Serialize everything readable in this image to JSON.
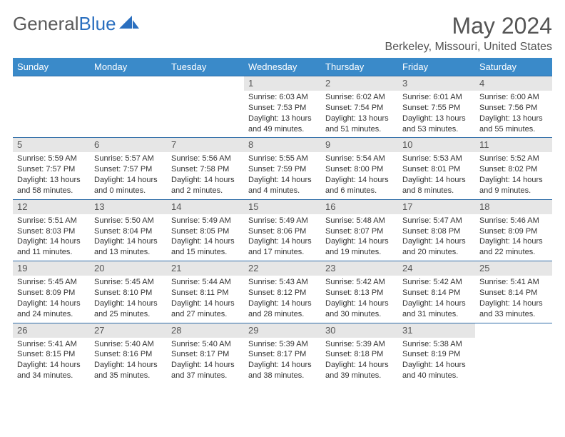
{
  "brand": {
    "part1": "General",
    "part2": "Blue",
    "color_text": "#5a5a5a",
    "color_accent": "#2a6fbf"
  },
  "title": "May 2024",
  "location": "Berkeley, Missouri, United States",
  "colors": {
    "header_bg": "#3a8ac9",
    "header_fg": "#ffffff",
    "row_border": "#2f6da8",
    "daynum_bg": "#e6e6e6",
    "body_text": "#333333",
    "page_bg": "#ffffff"
  },
  "fonts": {
    "title_size": 32,
    "location_size": 16,
    "th_size": 13,
    "daynum_size": 13,
    "body_size": 11
  },
  "weekdays": [
    "Sunday",
    "Monday",
    "Tuesday",
    "Wednesday",
    "Thursday",
    "Friday",
    "Saturday"
  ],
  "firstDayOffset": 3,
  "days": [
    {
      "n": 1,
      "sunrise": "6:03 AM",
      "sunset": "7:53 PM",
      "daylight": "13 hours and 49 minutes."
    },
    {
      "n": 2,
      "sunrise": "6:02 AM",
      "sunset": "7:54 PM",
      "daylight": "13 hours and 51 minutes."
    },
    {
      "n": 3,
      "sunrise": "6:01 AM",
      "sunset": "7:55 PM",
      "daylight": "13 hours and 53 minutes."
    },
    {
      "n": 4,
      "sunrise": "6:00 AM",
      "sunset": "7:56 PM",
      "daylight": "13 hours and 55 minutes."
    },
    {
      "n": 5,
      "sunrise": "5:59 AM",
      "sunset": "7:57 PM",
      "daylight": "13 hours and 58 minutes."
    },
    {
      "n": 6,
      "sunrise": "5:57 AM",
      "sunset": "7:57 PM",
      "daylight": "14 hours and 0 minutes."
    },
    {
      "n": 7,
      "sunrise": "5:56 AM",
      "sunset": "7:58 PM",
      "daylight": "14 hours and 2 minutes."
    },
    {
      "n": 8,
      "sunrise": "5:55 AM",
      "sunset": "7:59 PM",
      "daylight": "14 hours and 4 minutes."
    },
    {
      "n": 9,
      "sunrise": "5:54 AM",
      "sunset": "8:00 PM",
      "daylight": "14 hours and 6 minutes."
    },
    {
      "n": 10,
      "sunrise": "5:53 AM",
      "sunset": "8:01 PM",
      "daylight": "14 hours and 8 minutes."
    },
    {
      "n": 11,
      "sunrise": "5:52 AM",
      "sunset": "8:02 PM",
      "daylight": "14 hours and 9 minutes."
    },
    {
      "n": 12,
      "sunrise": "5:51 AM",
      "sunset": "8:03 PM",
      "daylight": "14 hours and 11 minutes."
    },
    {
      "n": 13,
      "sunrise": "5:50 AM",
      "sunset": "8:04 PM",
      "daylight": "14 hours and 13 minutes."
    },
    {
      "n": 14,
      "sunrise": "5:49 AM",
      "sunset": "8:05 PM",
      "daylight": "14 hours and 15 minutes."
    },
    {
      "n": 15,
      "sunrise": "5:49 AM",
      "sunset": "8:06 PM",
      "daylight": "14 hours and 17 minutes."
    },
    {
      "n": 16,
      "sunrise": "5:48 AM",
      "sunset": "8:07 PM",
      "daylight": "14 hours and 19 minutes."
    },
    {
      "n": 17,
      "sunrise": "5:47 AM",
      "sunset": "8:08 PM",
      "daylight": "14 hours and 20 minutes."
    },
    {
      "n": 18,
      "sunrise": "5:46 AM",
      "sunset": "8:09 PM",
      "daylight": "14 hours and 22 minutes."
    },
    {
      "n": 19,
      "sunrise": "5:45 AM",
      "sunset": "8:09 PM",
      "daylight": "14 hours and 24 minutes."
    },
    {
      "n": 20,
      "sunrise": "5:45 AM",
      "sunset": "8:10 PM",
      "daylight": "14 hours and 25 minutes."
    },
    {
      "n": 21,
      "sunrise": "5:44 AM",
      "sunset": "8:11 PM",
      "daylight": "14 hours and 27 minutes."
    },
    {
      "n": 22,
      "sunrise": "5:43 AM",
      "sunset": "8:12 PM",
      "daylight": "14 hours and 28 minutes."
    },
    {
      "n": 23,
      "sunrise": "5:42 AM",
      "sunset": "8:13 PM",
      "daylight": "14 hours and 30 minutes."
    },
    {
      "n": 24,
      "sunrise": "5:42 AM",
      "sunset": "8:14 PM",
      "daylight": "14 hours and 31 minutes."
    },
    {
      "n": 25,
      "sunrise": "5:41 AM",
      "sunset": "8:14 PM",
      "daylight": "14 hours and 33 minutes."
    },
    {
      "n": 26,
      "sunrise": "5:41 AM",
      "sunset": "8:15 PM",
      "daylight": "14 hours and 34 minutes."
    },
    {
      "n": 27,
      "sunrise": "5:40 AM",
      "sunset": "8:16 PM",
      "daylight": "14 hours and 35 minutes."
    },
    {
      "n": 28,
      "sunrise": "5:40 AM",
      "sunset": "8:17 PM",
      "daylight": "14 hours and 37 minutes."
    },
    {
      "n": 29,
      "sunrise": "5:39 AM",
      "sunset": "8:17 PM",
      "daylight": "14 hours and 38 minutes."
    },
    {
      "n": 30,
      "sunrise": "5:39 AM",
      "sunset": "8:18 PM",
      "daylight": "14 hours and 39 minutes."
    },
    {
      "n": 31,
      "sunrise": "5:38 AM",
      "sunset": "8:19 PM",
      "daylight": "14 hours and 40 minutes."
    }
  ],
  "labels": {
    "sunrise": "Sunrise: ",
    "sunset": "Sunset: ",
    "daylight": "Daylight: "
  }
}
